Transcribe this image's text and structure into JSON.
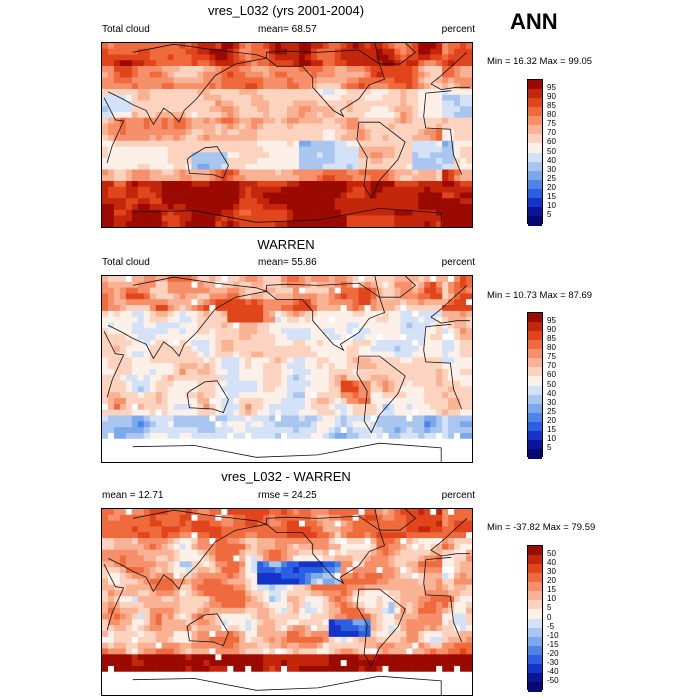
{
  "figure": {
    "season": "ANN"
  },
  "chart_data": [
    {
      "type": "heatmap",
      "title": "vres_L032 (yrs 2001-2004)",
      "left_label": "Total cloud",
      "center_label": "mean=  68.57",
      "right_label": "percent",
      "stat": "Min =  16.32 Max =  99.05",
      "min": 16.32,
      "max": 99.05,
      "mean": 68.57,
      "levels": [
        "95",
        "90",
        "85",
        "80",
        "75",
        "70",
        "60",
        "50",
        "40",
        "30",
        "25",
        "20",
        "15",
        "10",
        "5"
      ],
      "colors": [
        "#9b0a00",
        "#c3260a",
        "#e0451b",
        "#ef6a3c",
        "#f5906a",
        "#f9b293",
        "#fcd3bf",
        "#fdf0e8",
        "#d3e2f6",
        "#a9c6f0",
        "#7ca8ec",
        "#4e84e8",
        "#2b5fe2",
        "#1433c8",
        "#0b159a",
        "#060a6e"
      ]
    },
    {
      "type": "heatmap",
      "title": "WARREN",
      "left_label": "Total cloud",
      "center_label": "mean=  55.86",
      "right_label": "percent",
      "stat": "Min =  10.73 Max =  87.69",
      "min": 10.73,
      "max": 87.69,
      "mean": 55.86,
      "levels": [
        "95",
        "90",
        "85",
        "80",
        "75",
        "70",
        "60",
        "50",
        "40",
        "30",
        "25",
        "20",
        "15",
        "10",
        "5"
      ],
      "colors": [
        "#9b0a00",
        "#c3260a",
        "#e0451b",
        "#ef6a3c",
        "#f5906a",
        "#f9b293",
        "#fcd3bf",
        "#fdf0e8",
        "#d3e2f6",
        "#a9c6f0",
        "#7ca8ec",
        "#4e84e8",
        "#2b5fe2",
        "#1433c8",
        "#0b159a",
        "#060a6e"
      ]
    },
    {
      "type": "heatmap",
      "title": "vres_L032 - WARREN",
      "left_label": "mean =  12.71",
      "center_label": "rmse =  24.25",
      "right_label": "percent",
      "stat": "Min = -37.82 Max =  79.59",
      "min": -37.82,
      "max": 79.59,
      "mean": 12.71,
      "rmse": 24.25,
      "levels": [
        "50",
        "40",
        "30",
        "20",
        "15",
        "10",
        "5",
        "0",
        "-5",
        "-10",
        "-15",
        "-20",
        "-30",
        "-40",
        "-50"
      ],
      "colors": [
        "#9b0a00",
        "#c3260a",
        "#e0451b",
        "#ef6a3c",
        "#f5906a",
        "#f9b293",
        "#fcd3bf",
        "#fdf0e8",
        "#d3e2f6",
        "#a9c6f0",
        "#7ca8ec",
        "#4e84e8",
        "#2b5fe2",
        "#1433c8",
        "#0b159a",
        "#060a6e"
      ]
    }
  ]
}
